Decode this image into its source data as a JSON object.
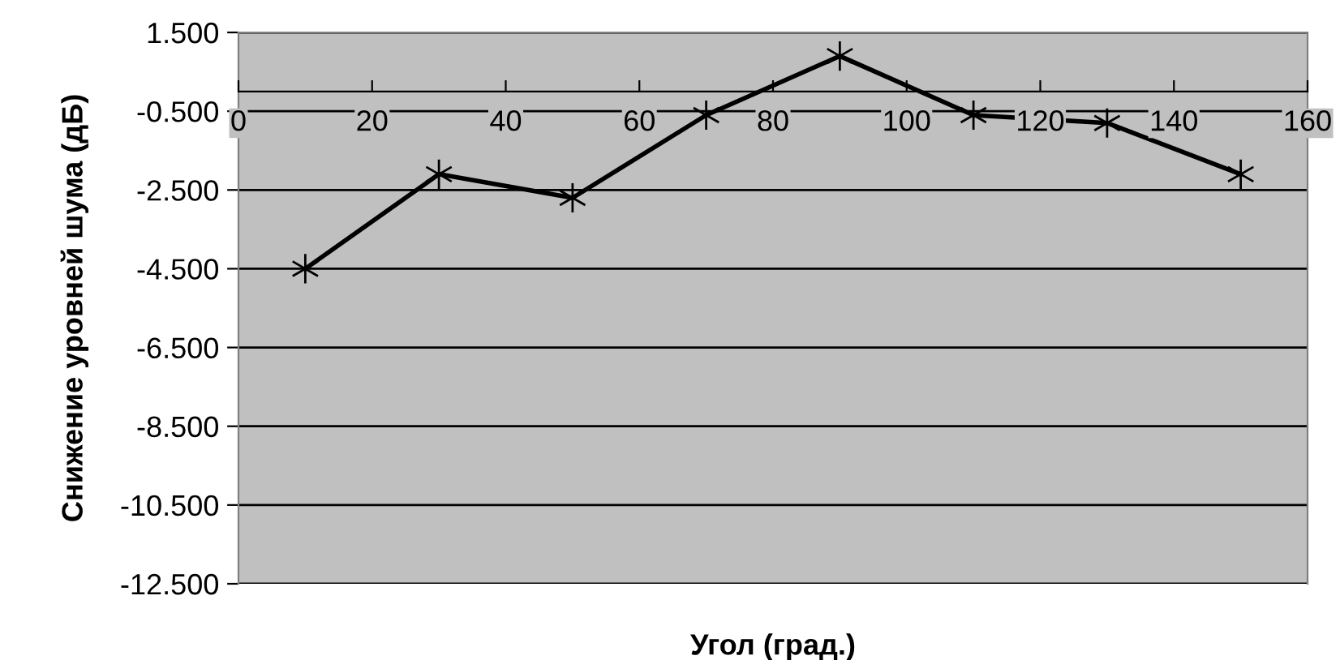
{
  "chart_data": {
    "type": "line",
    "xlabel": "Угол (град.)",
    "ylabel": "Снижение уровней шума (дБ)",
    "x": [
      10,
      30,
      50,
      70,
      90,
      110,
      130,
      150
    ],
    "series": [
      {
        "color": "#000000",
        "values": [
          -4.5,
          -2.1,
          -2.7,
          -0.6,
          0.9,
          -0.6,
          -0.8,
          -2.1
        ]
      }
    ],
    "xlim": [
      0,
      160
    ],
    "xticks": [
      0,
      20,
      40,
      60,
      80,
      100,
      120,
      140,
      160
    ],
    "ylim": [
      -12.5,
      1.5
    ],
    "yticks": [
      {
        "value": 1.5,
        "label": "1.500"
      },
      {
        "value": -0.5,
        "label": "-0.500"
      },
      {
        "value": -2.5,
        "label": "-2.500"
      },
      {
        "value": -4.5,
        "label": "-4.500"
      },
      {
        "value": -6.5,
        "label": "-6.500"
      },
      {
        "value": -8.5,
        "label": "-8.500"
      },
      {
        "value": -10.5,
        "label": "-10.500"
      },
      {
        "value": -12.5,
        "label": "-12.500"
      }
    ],
    "grid": "y",
    "legend": false,
    "marker": "cross",
    "line_style": "solid"
  }
}
